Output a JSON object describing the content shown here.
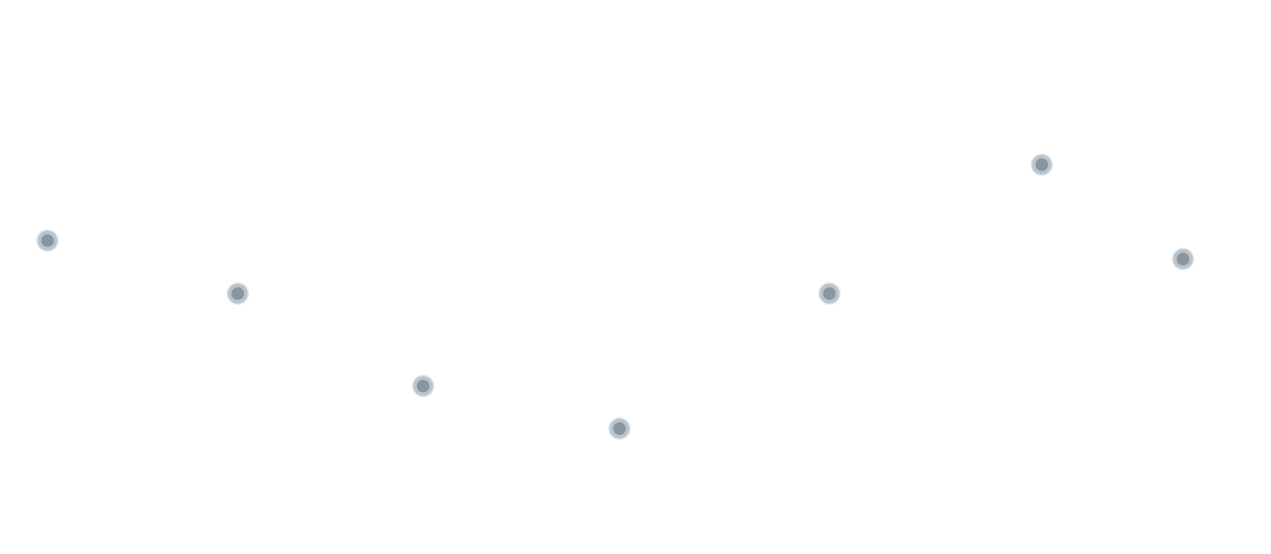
{
  "colors": {
    "background": "#ffffff",
    "marker_fill": "#8a969f",
    "marker_halo": "#b9c4cc",
    "marker_halo_edge": "#dfe6eb"
  },
  "chart_data": {
    "type": "scatter",
    "title": "",
    "xlabel": "",
    "ylabel": "",
    "grid": false,
    "legend": "none",
    "xlim": [
      0,
      1000
    ],
    "ylim": [
      0,
      100
    ],
    "series": [
      {
        "x": [
          17,
          172,
          323,
          483,
          654,
          827,
          942
        ],
        "y": [
          61.4,
          47.6,
          23.5,
          12.4,
          47.6,
          81.2,
          56.6
        ]
      }
    ]
  }
}
